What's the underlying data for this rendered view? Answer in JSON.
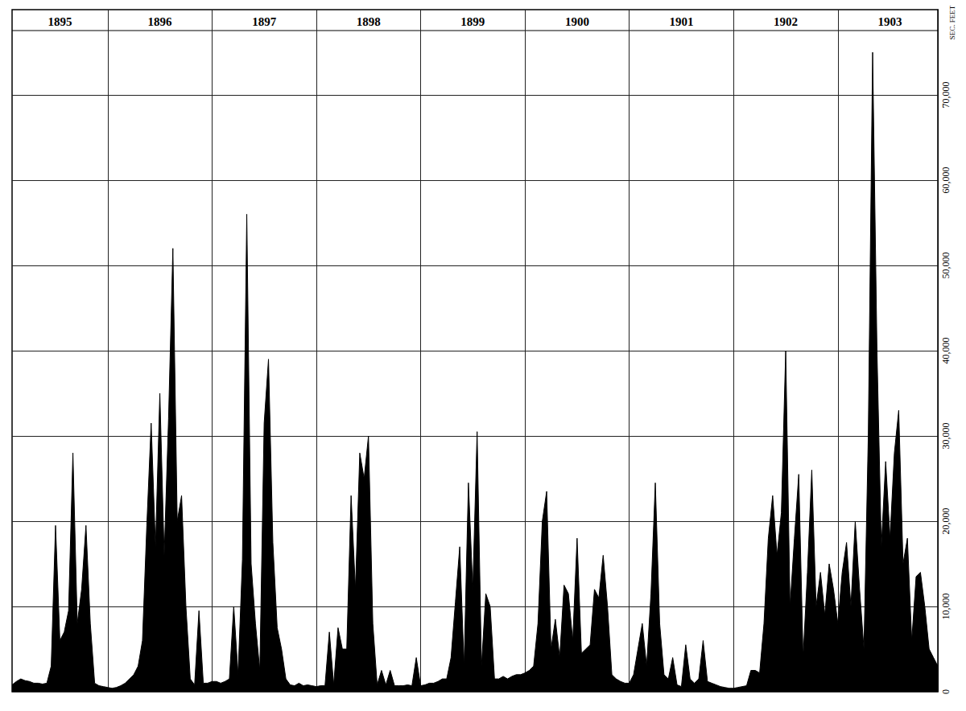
{
  "chart_data": {
    "type": "area",
    "y_label": "SEC. FEET",
    "categories": [
      null,
      null,
      null,
      null,
      null,
      null,
      null,
      null,
      null,
      null,
      null,
      "1895",
      null,
      null,
      null,
      null,
      null,
      null,
      null,
      null,
      null,
      null,
      null,
      null,
      null,
      null,
      null,
      null,
      null,
      null,
      null,
      null,
      null,
      null,
      "1896",
      null,
      null,
      null,
      null,
      null,
      null,
      null,
      null,
      null,
      null,
      null,
      null,
      null,
      null,
      null,
      null,
      null,
      null,
      null,
      null,
      null,
      null,
      null,
      "1897",
      null,
      null,
      null,
      null,
      null,
      null,
      null,
      null,
      null,
      null,
      null,
      null,
      null,
      null,
      null,
      null,
      null,
      null,
      null,
      null,
      null,
      null,
      null,
      "1898",
      null,
      null,
      null,
      null,
      null,
      null,
      null,
      null,
      null,
      null,
      null,
      null,
      null,
      null,
      null,
      null,
      null,
      null,
      null,
      null,
      null,
      null,
      null,
      "1899",
      null,
      null,
      null,
      null,
      null,
      null,
      null,
      null,
      null,
      null,
      null,
      null,
      null,
      null,
      null,
      null,
      null,
      null,
      null,
      null,
      null,
      null,
      null,
      "1900",
      null,
      null,
      null,
      null,
      null,
      null,
      null,
      null,
      null,
      null,
      null,
      null,
      null,
      null,
      null,
      null,
      null,
      null,
      null,
      null,
      null,
      null,
      null,
      "1901",
      null,
      null,
      null,
      null,
      null,
      null,
      null,
      null,
      null,
      null,
      null,
      null,
      null,
      null,
      null,
      null,
      null,
      null,
      null,
      null,
      null,
      null,
      null,
      "1902",
      null,
      null,
      null,
      null,
      null,
      null,
      null,
      null,
      null,
      null,
      null,
      null,
      null,
      null,
      null,
      null,
      null,
      null,
      null,
      null,
      null,
      null,
      null,
      "1903",
      null,
      null,
      null,
      null,
      null,
      null,
      null,
      null,
      null,
      null,
      null
    ],
    "values": [
      800,
      1200,
      1500,
      1300,
      1200,
      1000,
      1000,
      900,
      1000,
      3000,
      19500,
      6000,
      7000,
      9500,
      28000,
      8000,
      12000,
      19500,
      8000,
      1000,
      700,
      600,
      500,
      400,
      500,
      700,
      1000,
      1500,
      2000,
      3000,
      6000,
      19500,
      31500,
      17000,
      35000,
      16000,
      32000,
      52000,
      20000,
      23000,
      10000,
      1500,
      800,
      9500,
      1000,
      1000,
      1200,
      1200,
      1000,
      1200,
      1500,
      10000,
      2000,
      15500,
      56000,
      15000,
      8000,
      2500,
      31500,
      39000,
      17500,
      7500,
      5000,
      1500,
      800,
      700,
      1000,
      700,
      800,
      700,
      600,
      700,
      700,
      7000,
      800,
      7500,
      5000,
      5000,
      23000,
      12000,
      28000,
      25000,
      30000,
      8000,
      800,
      2500,
      800,
      2500,
      700,
      700,
      700,
      800,
      700,
      4000,
      700,
      800,
      1000,
      1000,
      1200,
      1500,
      1500,
      4000,
      10500,
      17000,
      3000,
      24500,
      12000,
      30500,
      3000,
      11500,
      10000,
      1500,
      1500,
      1800,
      1500,
      1800,
      2000,
      2000,
      2200,
      2500,
      3000,
      8000,
      20000,
      23500,
      5000,
      8500,
      4000,
      12500,
      11500,
      6000,
      18000,
      4500,
      5000,
      5500,
      12000,
      11000,
      16000,
      10000,
      2000,
      1500,
      1200,
      1000,
      1000,
      2000,
      5000,
      8000,
      3000,
      11500,
      24500,
      8000,
      2000,
      1500,
      4000,
      800,
      600,
      5500,
      1500,
      1000,
      1500,
      6000,
      1200,
      1000,
      800,
      600,
      500,
      400,
      400,
      500,
      600,
      700,
      2500,
      2500,
      2200,
      8000,
      18000,
      23000,
      16000,
      21000,
      40000,
      10000,
      18000,
      25500,
      4000,
      14000,
      26000,
      10000,
      14000,
      9000,
      15000,
      12000,
      8000,
      14000,
      17500,
      10000,
      20000,
      12000,
      5000,
      30000,
      75000,
      40000,
      17000,
      27000,
      18000,
      28000,
      33000,
      15000,
      18000,
      6000,
      13500,
      14000,
      10000,
      5000,
      4000,
      3000
    ],
    "color": "#000000",
    "ylim": [
      0,
      80000
    ],
    "yticks": [
      0,
      {
        "value": 10000,
        "label": "10,000"
      },
      {
        "value": 20000,
        "label": "20,000"
      },
      {
        "value": 30000,
        "label": "30,000"
      },
      {
        "value": 40000,
        "label": "40,000"
      },
      {
        "value": 50000,
        "label": "50,000"
      },
      {
        "value": 60000,
        "label": "60,000"
      },
      {
        "value": 70000,
        "label": "70,000"
      }
    ],
    "grid": true
  }
}
